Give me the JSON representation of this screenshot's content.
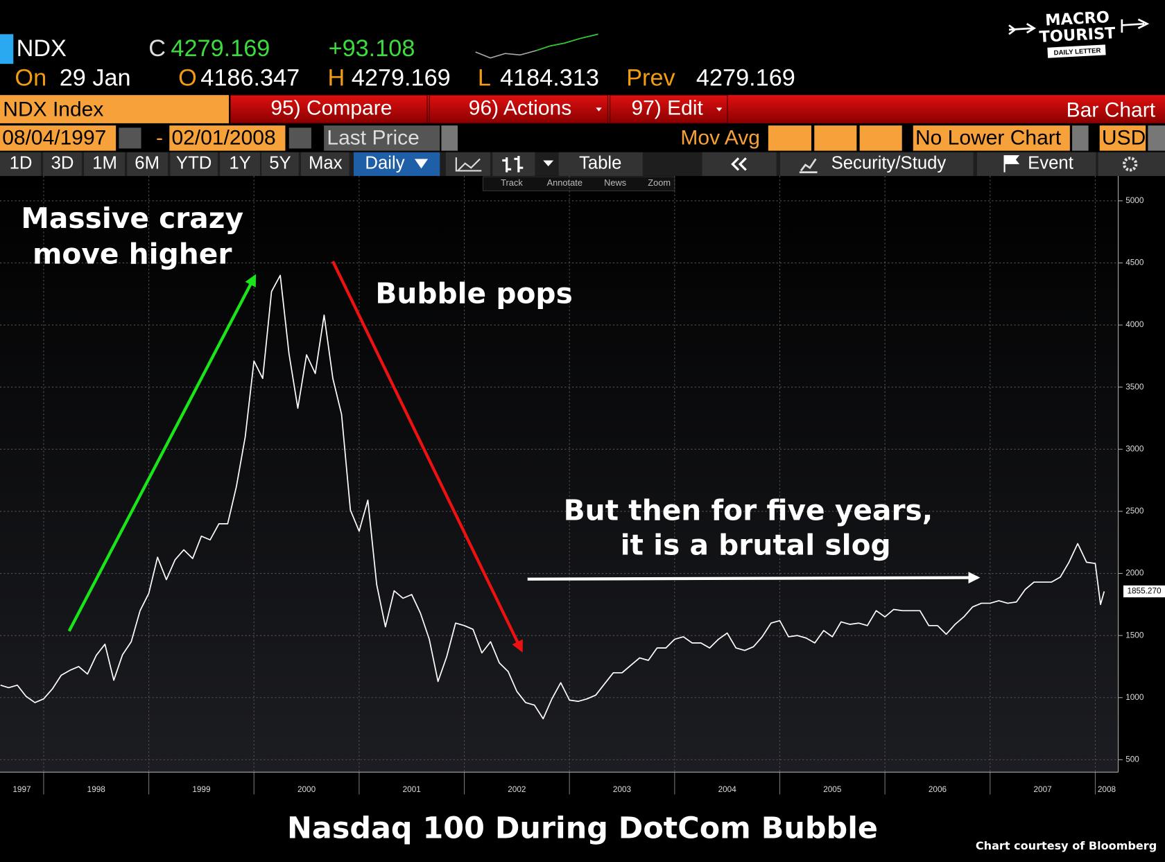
{
  "header": {
    "ticker": "NDX",
    "close_label": "C",
    "close": "4279.169",
    "change": "+93.108",
    "date_label": "On",
    "date": "29 Jan",
    "open_label": "O",
    "open": "4186.347",
    "high_label": "H",
    "high": "4279.169",
    "low_label": "L",
    "low": "4184.313",
    "prev_label": "Prev",
    "prev": "4279.169"
  },
  "toolbar": {
    "security": "NDX Index",
    "compare": "95) Compare",
    "actions": "96) Actions",
    "edit": "97) Edit",
    "chart_type": "Bar Chart",
    "start_date": "08/04/1997",
    "date_sep": "-",
    "end_date": "02/01/2008",
    "field": "Last Price",
    "mov_avg": "Mov Avg",
    "lower_chart": "No Lower Chart",
    "currency": "USD",
    "ranges": [
      "1D",
      "3D",
      "1M",
      "6M",
      "YTD",
      "1Y",
      "5Y",
      "Max"
    ],
    "period": "Daily",
    "table": "Table",
    "security_study": "Security/Study",
    "event": "Event",
    "tools": [
      "Track",
      "Annotate",
      "News",
      "Zoom"
    ]
  },
  "logo": {
    "line1": "MACRO",
    "line2": "TOURIST",
    "line3": "DAILY LETTER"
  },
  "chart_data": {
    "type": "line",
    "title": "Nasdaq 100 During DotCom Bubble",
    "source": "Chart courtesy of Bloomberg",
    "annotations": [
      [
        "Massive crazy",
        "move higher"
      ],
      [
        "Bubble pops"
      ],
      [
        "But then for five years,",
        "it is a brutal slog"
      ]
    ],
    "color": "#ffffff",
    "x": [
      1997.59,
      1997.667,
      1997.75,
      1997.833,
      1997.917,
      1998.0,
      1998.083,
      1998.167,
      1998.25,
      1998.333,
      1998.417,
      1998.5,
      1998.583,
      1998.667,
      1998.75,
      1998.833,
      1998.917,
      1999.0,
      1999.083,
      1999.167,
      1999.25,
      1999.333,
      1999.417,
      1999.5,
      1999.583,
      1999.667,
      1999.75,
      1999.833,
      1999.917,
      2000.0,
      2000.083,
      2000.167,
      2000.25,
      2000.333,
      2000.417,
      2000.5,
      2000.583,
      2000.667,
      2000.75,
      2000.833,
      2000.917,
      2001.0,
      2001.083,
      2001.167,
      2001.25,
      2001.333,
      2001.417,
      2001.5,
      2001.583,
      2001.667,
      2001.75,
      2001.833,
      2001.917,
      2002.0,
      2002.083,
      2002.167,
      2002.25,
      2002.333,
      2002.417,
      2002.5,
      2002.583,
      2002.667,
      2002.75,
      2002.833,
      2002.917,
      2003.0,
      2003.083,
      2003.167,
      2003.25,
      2003.333,
      2003.417,
      2003.5,
      2003.583,
      2003.667,
      2003.75,
      2003.833,
      2003.917,
      2004.0,
      2004.083,
      2004.167,
      2004.25,
      2004.333,
      2004.417,
      2004.5,
      2004.583,
      2004.667,
      2004.75,
      2004.833,
      2004.917,
      2005.0,
      2005.083,
      2005.167,
      2005.25,
      2005.333,
      2005.417,
      2005.5,
      2005.583,
      2005.667,
      2005.75,
      2005.833,
      2005.917,
      2006.0,
      2006.083,
      2006.167,
      2006.25,
      2006.333,
      2006.417,
      2006.5,
      2006.583,
      2006.667,
      2006.75,
      2006.833,
      2006.917,
      2007.0,
      2007.083,
      2007.167,
      2007.25,
      2007.333,
      2007.417,
      2007.5,
      2007.583,
      2007.667,
      2007.75,
      2007.833,
      2007.917,
      2008.0,
      2008.05,
      2008.085
    ],
    "values": [
      1100,
      1080,
      1100,
      1010,
      960,
      990,
      1070,
      1180,
      1220,
      1250,
      1190,
      1340,
      1430,
      1140,
      1345,
      1450,
      1700,
      1840,
      2130,
      1950,
      2110,
      2190,
      2120,
      2300,
      2270,
      2400,
      2400,
      2700,
      3100,
      3710,
      3570,
      4270,
      4400,
      3770,
      3330,
      3760,
      3610,
      4080,
      3570,
      3280,
      2510,
      2340,
      2590,
      1910,
      1570,
      1860,
      1800,
      1830,
      1680,
      1470,
      1130,
      1330,
      1600,
      1580,
      1550,
      1360,
      1450,
      1280,
      1210,
      1050,
      960,
      940,
      830,
      990,
      1120,
      980,
      970,
      990,
      1020,
      1110,
      1200,
      1200,
      1260,
      1320,
      1300,
      1400,
      1400,
      1470,
      1490,
      1440,
      1440,
      1400,
      1470,
      1520,
      1400,
      1380,
      1410,
      1490,
      1600,
      1620,
      1490,
      1500,
      1480,
      1440,
      1540,
      1490,
      1610,
      1590,
      1600,
      1580,
      1700,
      1650,
      1710,
      1700,
      1700,
      1700,
      1580,
      1580,
      1510,
      1590,
      1650,
      1730,
      1760,
      1760,
      1780,
      1760,
      1770,
      1870,
      1930,
      1930,
      1930,
      1970,
      2090,
      2240,
      2090,
      2080,
      1750,
      1855.27
    ],
    "last_price": {
      "value": 1855.27,
      "label": "1855.270"
    },
    "xlim": [
      1997.585,
      2008.218
    ],
    "xticks": [
      1997,
      1998,
      1999,
      2000,
      2001,
      2002,
      2003,
      2004,
      2005,
      2006,
      2007,
      2008
    ],
    "ylim": [
      400,
      5200
    ],
    "yticks": [
      500,
      1000,
      1500,
      2000,
      2500,
      3000,
      3500,
      4000,
      4500,
      5000
    ],
    "grid": true,
    "y_axis_side": "right"
  }
}
